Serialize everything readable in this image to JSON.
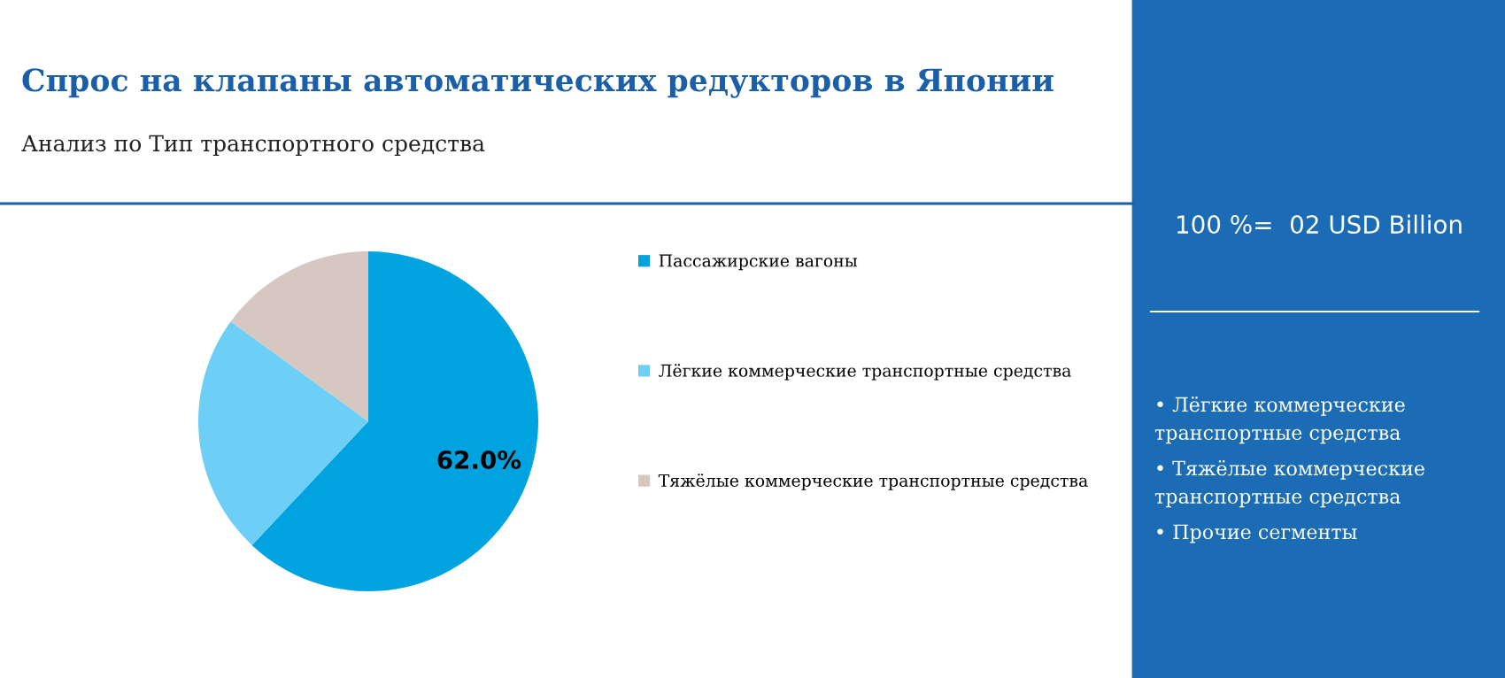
{
  "chart_data": {
    "type": "pie",
    "title": "Спрос на клапаны автоматических редукторов в Японии",
    "subtitle": "Анализ по Тип транспортного средства",
    "categories": [
      "Пассажирские вагоны",
      "Лёгкие коммерческие транспортные средства",
      "Тяжёлые коммерческие транспортные средства"
    ],
    "values": [
      62,
      23,
      15
    ],
    "colors": [
      "#00a3e0",
      "#6dcff6",
      "#d6c8c0"
    ],
    "value_labels": [
      "62.0%",
      null,
      null
    ],
    "legend": "right",
    "annotations": [
      "100 %=  02 USD Billion",
      "• Лёгкие коммерческие транспортные средства",
      "• Тяжёлые коммерческие транспортные средства",
      "• Прочие сегменты"
    ]
  }
}
